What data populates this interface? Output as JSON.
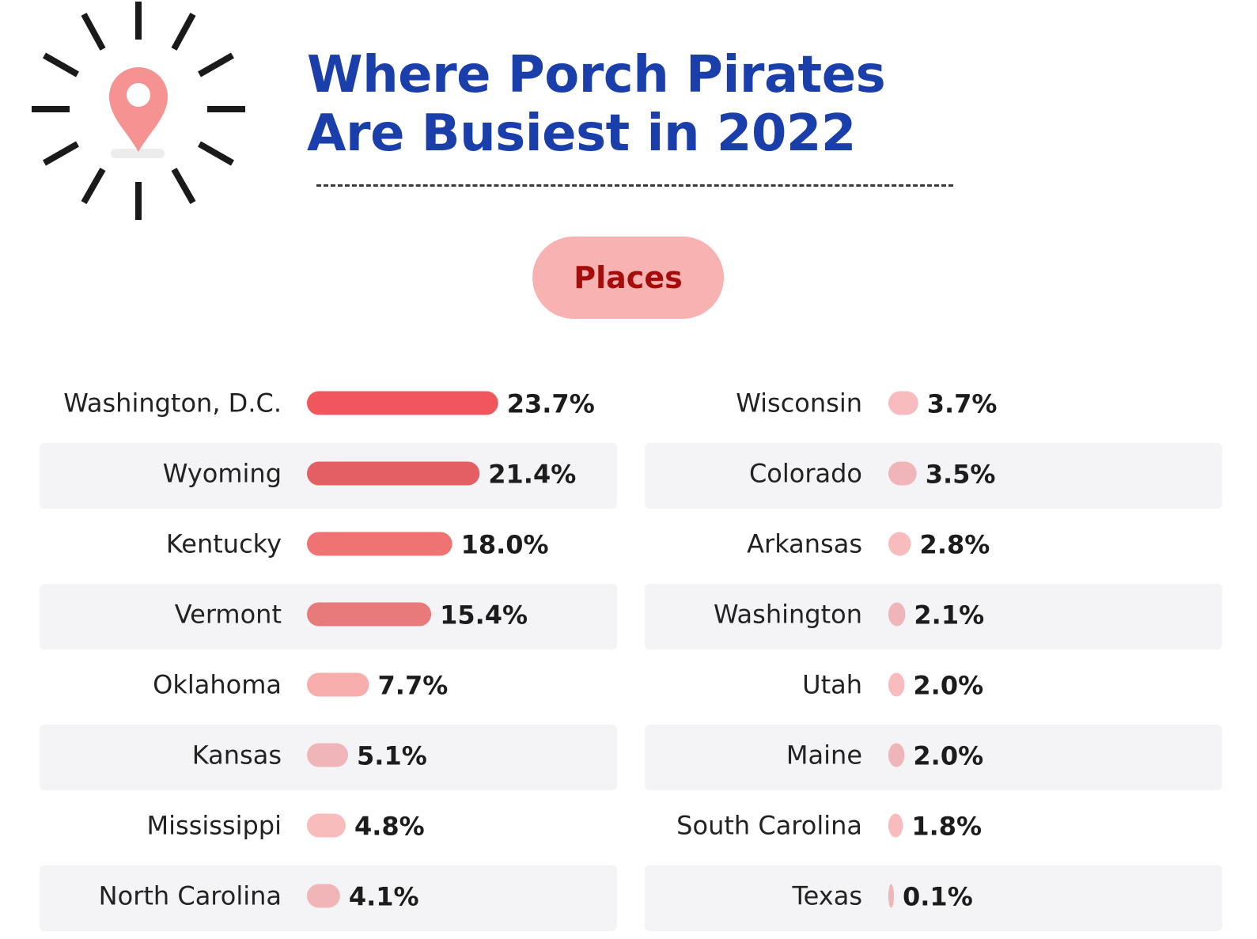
{
  "header": {
    "title_line1": "Where Porch Pirates",
    "title_line2": "Are Busiest in 2022",
    "icon": "location-pin-icon",
    "pill_label": "Places"
  },
  "colors": {
    "title": "#1a3faa",
    "pill_bg": "#f8b2b2",
    "pill_text": "#a50d0d",
    "row_band": "#f4f4f6"
  },
  "chart_data": {
    "type": "bar",
    "orientation": "horizontal",
    "unit": "%",
    "grid": false,
    "columns": [
      {
        "categories": [
          "Washington, D.C.",
          "Wyoming",
          "Kentucky",
          "Vermont",
          "Oklahoma",
          "Kansas",
          "Mississippi",
          "North Carolina"
        ],
        "values": [
          23.7,
          21.4,
          18.0,
          15.4,
          7.7,
          5.1,
          4.8,
          4.1
        ],
        "labels": [
          "23.7%",
          "21.4%",
          "18.0%",
          "15.4%",
          "7.7%",
          "5.1%",
          "4.8%",
          "4.1%"
        ],
        "colors": [
          "#f0575c",
          "#e35f63",
          "#f07373",
          "#e87a7c",
          "#f8adad",
          "#efb5b8",
          "#f8bcbd",
          "#f1b5b8"
        ]
      },
      {
        "categories": [
          "Wisconsin",
          "Colorado",
          "Arkansas",
          "Washington",
          "Utah",
          "Maine",
          "South Carolina",
          "Texas"
        ],
        "values": [
          3.7,
          3.5,
          2.8,
          2.1,
          2.0,
          2.0,
          1.8,
          0.1
        ],
        "labels": [
          "3.7%",
          "3.5%",
          "2.8%",
          "2.1%",
          "2.0%",
          "2.0%",
          "1.8%",
          "0.1%"
        ],
        "colors": [
          "#f8bcbf",
          "#efb5b8",
          "#f8bcbf",
          "#efb5b8",
          "#f8bcbf",
          "#efb5b8",
          "#f8bcbf",
          "#efb5b8"
        ]
      }
    ]
  }
}
